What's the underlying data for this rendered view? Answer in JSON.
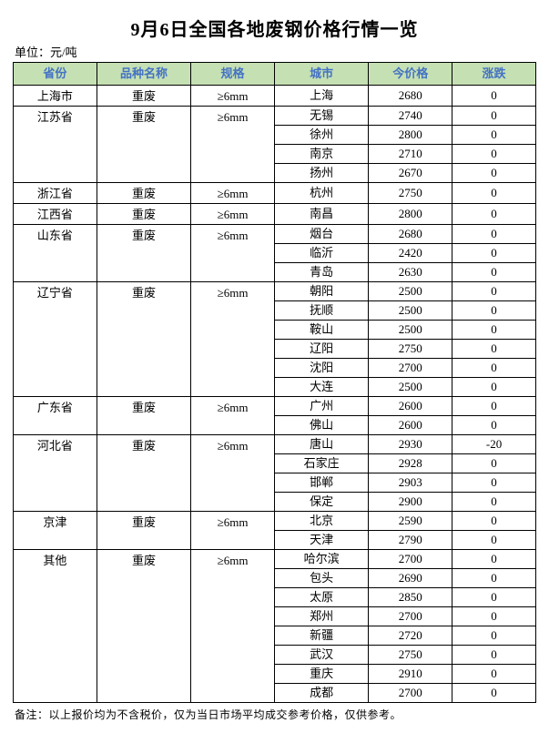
{
  "title": "9月6日全国各地废钢价格行情一览",
  "unit_label": "单位：元/吨",
  "footnote": "备注：以上报价均为不含税价，仅为当日市场平均成交参考价格，仅供参考。",
  "header_bg_color": "#c5e0b3",
  "header_text_color": "#4472c4",
  "border_color": "#000000",
  "background_color": "#ffffff",
  "columns": [
    "省份",
    "品种名称",
    "规格",
    "城市",
    "今价格",
    "涨跌"
  ],
  "groups": [
    {
      "province": "上海市",
      "variety": "重废",
      "spec": "≥6mm",
      "rows": [
        {
          "city": "上海",
          "price": 2680,
          "change": 0
        }
      ]
    },
    {
      "province": "江苏省",
      "variety": "重废",
      "spec": "≥6mm",
      "rows": [
        {
          "city": "无锡",
          "price": 2740,
          "change": 0
        },
        {
          "city": "徐州",
          "price": 2800,
          "change": 0
        },
        {
          "city": "南京",
          "price": 2710,
          "change": 0
        },
        {
          "city": "扬州",
          "price": 2670,
          "change": 0
        }
      ]
    },
    {
      "province": "浙江省",
      "variety": "重废",
      "spec": "≥6mm",
      "rows": [
        {
          "city": "杭州",
          "price": 2750,
          "change": 0
        }
      ]
    },
    {
      "province": "江西省",
      "variety": "重废",
      "spec": "≥6mm",
      "rows": [
        {
          "city": "南昌",
          "price": 2800,
          "change": 0
        }
      ]
    },
    {
      "province": "山东省",
      "variety": "重废",
      "spec": "≥6mm",
      "rows": [
        {
          "city": "烟台",
          "price": 2680,
          "change": 0
        },
        {
          "city": "临沂",
          "price": 2420,
          "change": 0
        },
        {
          "city": "青岛",
          "price": 2630,
          "change": 0
        }
      ]
    },
    {
      "province": "辽宁省",
      "variety": "重废",
      "spec": "≥6mm",
      "rows": [
        {
          "city": "朝阳",
          "price": 2500,
          "change": 0
        },
        {
          "city": "抚顺",
          "price": 2500,
          "change": 0
        },
        {
          "city": "鞍山",
          "price": 2500,
          "change": 0
        },
        {
          "city": "辽阳",
          "price": 2750,
          "change": 0
        },
        {
          "city": "沈阳",
          "price": 2700,
          "change": 0
        },
        {
          "city": "大连",
          "price": 2500,
          "change": 0
        }
      ]
    },
    {
      "province": "广东省",
      "variety": "重废",
      "spec": "≥6mm",
      "rows": [
        {
          "city": "广州",
          "price": 2600,
          "change": 0
        },
        {
          "city": "佛山",
          "price": 2600,
          "change": 0
        }
      ]
    },
    {
      "province": "河北省",
      "variety": "重废",
      "spec": "≥6mm",
      "rows": [
        {
          "city": "唐山",
          "price": 2930,
          "change": -20
        },
        {
          "city": "石家庄",
          "price": 2928,
          "change": 0
        },
        {
          "city": "邯郸",
          "price": 2903,
          "change": 0
        },
        {
          "city": "保定",
          "price": 2900,
          "change": 0
        }
      ]
    },
    {
      "province": "京津",
      "variety": "重废",
      "spec": "≥6mm",
      "rows": [
        {
          "city": "北京",
          "price": 2590,
          "change": 0
        },
        {
          "city": "天津",
          "price": 2790,
          "change": 0
        }
      ]
    },
    {
      "province": "其他",
      "variety": "重废",
      "spec": "≥6mm",
      "rows": [
        {
          "city": "哈尔滨",
          "price": 2700,
          "change": 0
        },
        {
          "city": "包头",
          "price": 2690,
          "change": 0
        },
        {
          "city": "太原",
          "price": 2850,
          "change": 0
        },
        {
          "city": "郑州",
          "price": 2700,
          "change": 0
        },
        {
          "city": "新疆",
          "price": 2720,
          "change": 0
        },
        {
          "city": "武汉",
          "price": 2750,
          "change": 0
        },
        {
          "city": "重庆",
          "price": 2910,
          "change": 0
        },
        {
          "city": "成都",
          "price": 2700,
          "change": 0
        }
      ]
    }
  ]
}
